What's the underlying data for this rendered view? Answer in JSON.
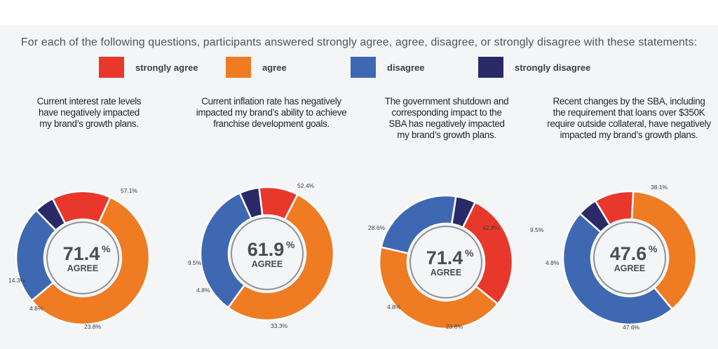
{
  "intro": "For each of the following questions, participants answered strongly agree, agree, disagree, or strongly disagree with these statements:",
  "legend": [
    {
      "label": "strongly agree",
      "color": "#e8382b"
    },
    {
      "label": "agree",
      "color": "#ef7b22"
    },
    {
      "label": "disagree",
      "color": "#3f68b2"
    },
    {
      "label": "strongly disagree",
      "color": "#2a2a68"
    }
  ],
  "charts": [
    {
      "question_lines": [
        "Current interest rate levels",
        "have negatively impacted",
        "my brand’s growth plans."
      ]
    },
    {
      "question_lines": [
        "Current inflation rate has negatively",
        "impacted my brand’s ability to achieve",
        "franchise development goals."
      ]
    },
    {
      "question_lines": [
        "The government shutdown and",
        "corresponding impact to the",
        "SBA has negatively impacted",
        "my brand’s growth plans."
      ]
    },
    {
      "question_lines": [
        "Recent changes by the SBA,  including",
        "the requirement that loans over $350K",
        "require outside collateral, have negatively",
        "impacted my brand’s growth plans."
      ]
    }
  ],
  "chart_data": [
    {
      "type": "pie",
      "title": "Current interest rate levels have negatively impacted my brand’s growth plans.",
      "categories": [
        "strongly agree",
        "agree",
        "disagree",
        "strongly disagree"
      ],
      "values": [
        14.3,
        57.1,
        23.8,
        4.8
      ],
      "labels": [
        "14.3%",
        "57.1%",
        "23.8%",
        "4.8%"
      ],
      "center_value": "71.4",
      "center_unit": "%",
      "center_label": "AGREE"
    },
    {
      "type": "pie",
      "title": "Current inflation rate has negatively impacted my brand’s ability to achieve franchise development goals.",
      "categories": [
        "strongly agree",
        "agree",
        "disagree",
        "strongly disagree"
      ],
      "values": [
        9.5,
        52.4,
        33.3,
        4.8
      ],
      "labels": [
        "9.5%",
        "52.4%",
        "33.3%",
        "4.8%"
      ],
      "center_value": "61.9",
      "center_unit": "%",
      "center_label": "AGREE"
    },
    {
      "type": "pie",
      "title": "The government shutdown and corresponding impact to the SBA has negatively impacted my brand’s growth plans.",
      "categories": [
        "strongly agree",
        "agree",
        "disagree",
        "strongly disagree"
      ],
      "values": [
        28.6,
        42.8,
        23.8,
        4.8
      ],
      "labels": [
        "28.6%",
        "42.8%",
        "23.8%",
        "4.8%"
      ],
      "center_value": "71.4",
      "center_unit": "%",
      "center_label": "AGREE"
    },
    {
      "type": "pie",
      "title": "Recent changes by the SBA, including the requirement that loans over $350K require outside collateral, have negatively impacted my brand’s growth plans.",
      "categories": [
        "strongly agree",
        "agree",
        "disagree",
        "strongly disagree"
      ],
      "values": [
        9.5,
        38.1,
        47.6,
        4.8
      ],
      "labels": [
        "9.5%",
        "38.1%",
        "47.6%",
        "4.8%"
      ],
      "center_value": "47.6",
      "center_unit": "%",
      "center_label": "AGREE"
    }
  ]
}
